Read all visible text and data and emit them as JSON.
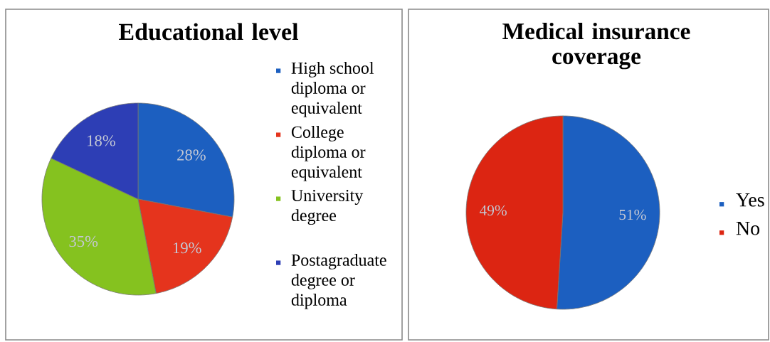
{
  "chart_data": [
    {
      "type": "pie",
      "title": "Educational level",
      "categories": [
        "High school diploma or equivalent",
        "College diploma or equivalent",
        "University degree",
        "Postagraduate degree or diploma"
      ],
      "values": [
        28,
        19,
        35,
        18
      ],
      "colors": [
        "#1c5fc0",
        "#e5341d",
        "#85c21f",
        "#2d3eb5"
      ],
      "value_labels": [
        "28%",
        "19%",
        "35%",
        "18%"
      ],
      "legend": "right"
    },
    {
      "type": "pie",
      "title": "Medical insurance coverage",
      "categories": [
        "Yes",
        "No"
      ],
      "values": [
        51,
        49
      ],
      "colors": [
        "#1c5fc0",
        "#dc2512"
      ],
      "value_labels": [
        "51%",
        "49%"
      ],
      "legend": "right"
    }
  ]
}
